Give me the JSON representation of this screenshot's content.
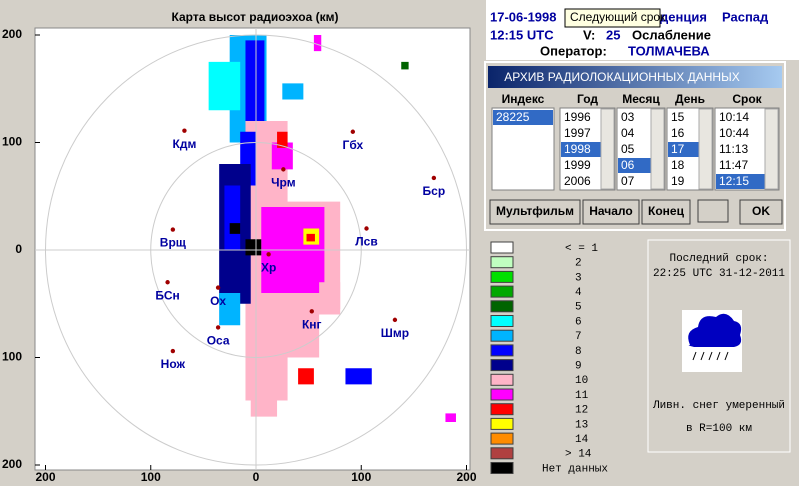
{
  "header": {
    "date": "17-06-1998",
    "tooltip": "Следующий срок",
    "trend_label": "денция",
    "trend": "Распад",
    "time": "12:15 UTC",
    "v_label": "V:",
    "v": "25",
    "change": "Ослабление",
    "operator_label": "Оператор:",
    "operator": "ТОЛМАЧЕВА"
  },
  "map": {
    "title": "Карта высот радиоэхоа (км)",
    "xlim": [
      -200,
      200
    ],
    "ylim": [
      -200,
      200
    ],
    "xticks": [
      {
        "value": -200,
        "label": "200"
      },
      {
        "value": -100,
        "label": "100"
      },
      0,
      100,
      200
    ],
    "yticks": [
      {
        "value": -200,
        "label": "200"
      },
      {
        "value": -100,
        "label": "100"
      },
      0,
      100,
      200
    ],
    "rings": [
      100,
      200
    ],
    "stations": [
      {
        "name": "Кдм",
        "x": -68,
        "y": 111
      },
      {
        "name": "Гбх",
        "x": 92,
        "y": 110
      },
      {
        "name": "Бср",
        "x": 169,
        "y": 67
      },
      {
        "name": "Чрм",
        "x": 26,
        "y": 75
      },
      {
        "name": "Лсв",
        "x": 105,
        "y": 20
      },
      {
        "name": "Врщ",
        "x": -79,
        "y": 19
      },
      {
        "name": "Хр",
        "x": 12,
        "y": -4
      },
      {
        "name": "БСн",
        "x": -84,
        "y": -30
      },
      {
        "name": "Ох",
        "x": -36,
        "y": -35
      },
      {
        "name": "Кнг",
        "x": 53,
        "y": -57
      },
      {
        "name": "Шмр",
        "x": 132,
        "y": -65
      },
      {
        "name": "Оса",
        "x": -36,
        "y": -72
      },
      {
        "name": "Нож",
        "x": -79,
        "y": -94
      }
    ],
    "echo": [
      {
        "x": [
          -25,
          10
        ],
        "y": [
          100,
          200
        ],
        "level": 6
      },
      {
        "x": [
          -45,
          -15
        ],
        "y": [
          130,
          175
        ],
        "level": 5
      },
      {
        "x": [
          -10,
          8
        ],
        "y": [
          110,
          195
        ],
        "level": 7
      },
      {
        "x": [
          25,
          45
        ],
        "y": [
          140,
          155
        ],
        "level": 6
      },
      {
        "x": [
          55,
          62
        ],
        "y": [
          185,
          200
        ],
        "level": 10
      },
      {
        "x": [
          138,
          145
        ],
        "y": [
          168,
          175
        ],
        "level": 4
      },
      {
        "x": [
          -10,
          30
        ],
        "y": [
          -140,
          120
        ],
        "level": 9
      },
      {
        "x": [
          -15,
          0
        ],
        "y": [
          60,
          110
        ],
        "level": 7
      },
      {
        "x": [
          -35,
          -5
        ],
        "y": [
          -50,
          80
        ],
        "level": 8
      },
      {
        "x": [
          -30,
          -15
        ],
        "y": [
          0,
          60
        ],
        "level": 7
      },
      {
        "x": [
          -35,
          -15
        ],
        "y": [
          -70,
          -40
        ],
        "level": 6
      },
      {
        "x": [
          5,
          80
        ],
        "y": [
          -60,
          45
        ],
        "level": 9
      },
      {
        "x": [
          5,
          65
        ],
        "y": [
          -40,
          40
        ],
        "level": 10
      },
      {
        "x": [
          15,
          35
        ],
        "y": [
          75,
          100
        ],
        "level": 10
      },
      {
        "x": [
          20,
          30
        ],
        "y": [
          95,
          110
        ],
        "level": 11
      },
      {
        "x": [
          45,
          60
        ],
        "y": [
          5,
          20
        ],
        "level": 12
      },
      {
        "x": [
          48,
          56
        ],
        "y": [
          8,
          15
        ],
        "level": 11
      },
      {
        "x": [
          -25,
          -15
        ],
        "y": [
          15,
          25
        ],
        "level": 15
      },
      {
        "x": [
          -10,
          5
        ],
        "y": [
          -5,
          10
        ],
        "level": 15
      },
      {
        "x": [
          20,
          60
        ],
        "y": [
          -100,
          -60
        ],
        "level": 9
      },
      {
        "x": [
          60,
          80
        ],
        "y": [
          -55,
          -30
        ],
        "level": 9
      },
      {
        "x": [
          -5,
          20
        ],
        "y": [
          -155,
          -120
        ],
        "level": 9
      },
      {
        "x": [
          40,
          55
        ],
        "y": [
          -125,
          -110
        ],
        "level": 11
      },
      {
        "x": [
          85,
          110
        ],
        "y": [
          -125,
          -110
        ],
        "level": 7
      },
      {
        "x": [
          180,
          190
        ],
        "y": [
          -160,
          -152
        ],
        "level": 10
      }
    ]
  },
  "archive": {
    "title": "АРХИВ  РАДИОЛОКАЦИОННЫХ ДАННЫХ",
    "columns": [
      {
        "header": "Индекс",
        "items": [
          "28225"
        ],
        "selected": 0
      },
      {
        "header": "Год",
        "items": [
          "1996",
          "1997",
          "1998",
          "1999",
          "2006"
        ],
        "selected": 2
      },
      {
        "header": "Месяц",
        "items": [
          "03",
          "04",
          "05",
          "06",
          "07"
        ],
        "selected": 3
      },
      {
        "header": "День",
        "items": [
          "15",
          "16",
          "17",
          "18",
          "19"
        ],
        "selected": 2
      },
      {
        "header": "Срок",
        "items": [
          "10:14",
          "10:44",
          "11:13",
          "11:47",
          "12:15"
        ],
        "selected": 4
      }
    ],
    "buttons": [
      "Мультфильм",
      "Начало",
      "Конец",
      "OK"
    ]
  },
  "legend": {
    "items": [
      {
        "label": "< = 1",
        "color": "#ffffff"
      },
      {
        "label": "2",
        "color": "#c0ffc0"
      },
      {
        "label": "3",
        "color": "#00e000"
      },
      {
        "label": "4",
        "color": "#00a800"
      },
      {
        "label": "5",
        "color": "#006400"
      },
      {
        "label": "6",
        "color": "#00ffff"
      },
      {
        "label": "7",
        "color": "#00b4ff"
      },
      {
        "label": "8",
        "color": "#0000ff"
      },
      {
        "label": "9",
        "color": "#00008c"
      },
      {
        "label": "10",
        "color": "#ffb4c8"
      },
      {
        "label": "11",
        "color": "#ff00ff"
      },
      {
        "label": "12",
        "color": "#ff0000"
      },
      {
        "label": "13",
        "color": "#ffff00"
      },
      {
        "label": "14",
        "color": "#ff8c00"
      },
      {
        "label": "> 14",
        "color": "#b04040"
      },
      {
        "label": "Нет данных",
        "color": "#000000"
      }
    ]
  },
  "info": {
    "last_label": "Последний срок:",
    "last": "22:25 UTC 31-12-2011",
    "weather": "Ливн. снег умеренный",
    "radius": "в R=100 км"
  }
}
